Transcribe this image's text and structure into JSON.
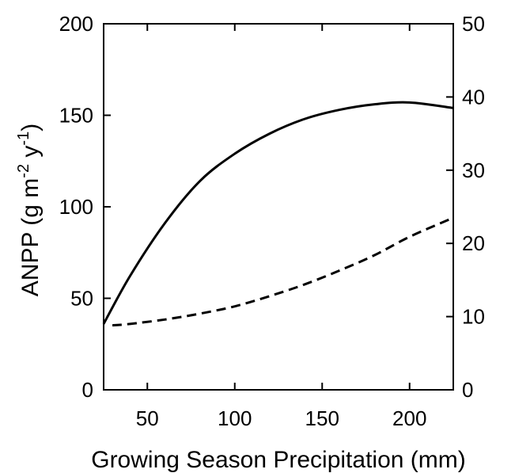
{
  "chart_data": {
    "type": "line",
    "xlabel": "Growing Season Precipitation (mm)",
    "ylabel_left": "ANPP (g m^-2 y^-1)",
    "ylabel_left_parts": {
      "base": "ANPP (g m",
      "exp1": "-2",
      "mid": " y",
      "exp2": "-1",
      "end": ")"
    },
    "xlim": [
      25,
      225
    ],
    "ylim_left": [
      0,
      200
    ],
    "ylim_right": [
      0,
      50
    ],
    "xticks": [
      50,
      100,
      150,
      200
    ],
    "yticks_left": [
      0,
      50,
      100,
      150,
      200
    ],
    "yticks_right": [
      0,
      10,
      20,
      30,
      40,
      50
    ],
    "grid": false,
    "legend": "none",
    "series": [
      {
        "axis": "left",
        "style": "solid",
        "color": "#000000",
        "x": [
          25,
          40,
          60,
          80,
          100,
          120,
          140,
          160,
          180,
          200,
          225
        ],
        "y": [
          36,
          62,
          91,
          114,
          129,
          140,
          148,
          153,
          156,
          157,
          154
        ]
      },
      {
        "axis": "right",
        "style": "dashed",
        "color": "#000000",
        "x": [
          30,
          40,
          60,
          80,
          100,
          120,
          140,
          160,
          180,
          200,
          225
        ],
        "y": [
          8.8,
          9.0,
          9.6,
          10.4,
          11.4,
          12.8,
          14.4,
          16.3,
          18.4,
          20.9,
          23.5
        ]
      }
    ]
  }
}
